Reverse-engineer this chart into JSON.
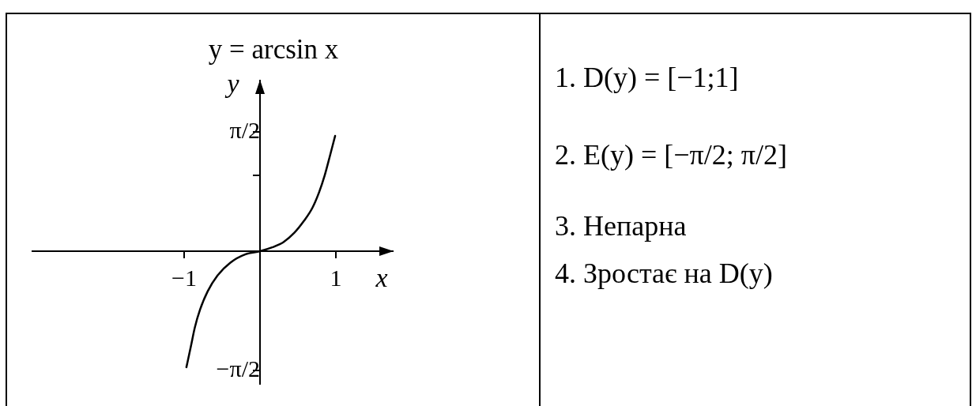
{
  "chart_data": {
    "type": "line",
    "title": "y = arcsin x",
    "xlabel": "x",
    "ylabel": "y",
    "x": [
      -0.97,
      -0.91,
      -0.86,
      -0.79,
      -0.69,
      -0.56,
      -0.39,
      -0.19,
      0,
      0.16,
      0.31,
      0.45,
      0.58,
      0.69,
      0.78,
      0.85,
      0.92,
      0.99
    ],
    "values": [
      -1.53,
      -1.25,
      -1.01,
      -0.77,
      -0.53,
      -0.32,
      -0.15,
      -0.04,
      0,
      0.05,
      0.12,
      0.24,
      0.4,
      0.57,
      0.78,
      0.99,
      1.25,
      1.52
    ],
    "color": "#000000",
    "xlim": [
      -3,
      1.75
    ],
    "ylim": [
      -1.75,
      2.25
    ],
    "xticks": [
      {
        "value": -1,
        "label": "−1"
      },
      1
    ],
    "yticks": [
      {
        "value": -1.57,
        "label": "−π/2"
      },
      {
        "value": 1,
        "label": null
      },
      {
        "value": 1.57,
        "label": "π/2"
      }
    ],
    "annotations": [
      "1. D(y) = [−1;1]",
      "2. E(y) = [−π/2; π/2]",
      "3. Непарна",
      "4. Зростає на D(y)"
    ]
  }
}
